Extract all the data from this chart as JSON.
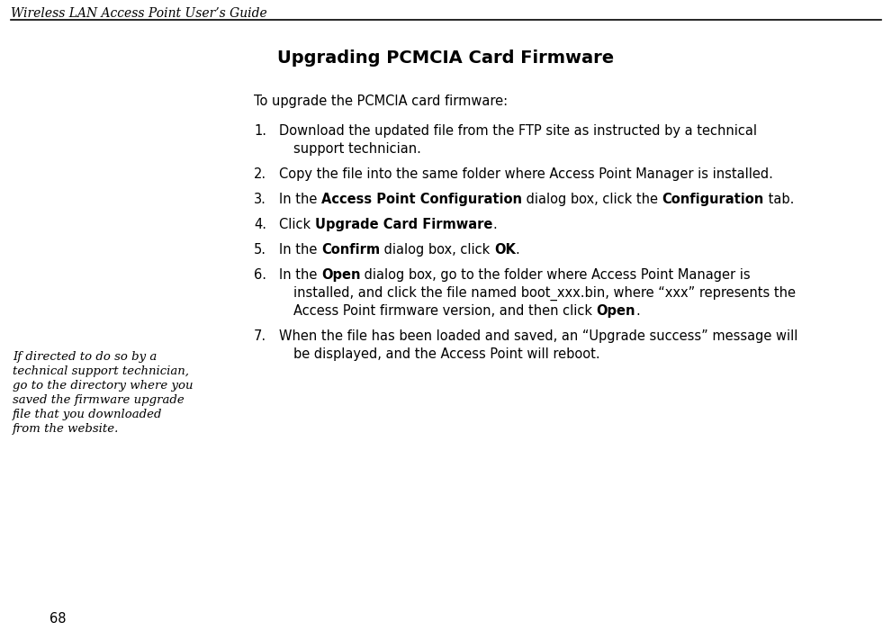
{
  "bg_color": "#ffffff",
  "header_text": "Wireless LAN Access Point User’s Guide",
  "title_text": "Upgrading PCMCIA Card Firmware",
  "page_number": "68",
  "intro_text": "To upgrade the PCMCIA card firmware:",
  "sidebar_lines": [
    "If directed to do so by a",
    "technical support technician,",
    "go to the directory where you",
    "saved the firmware upgrade",
    "file that you downloaded",
    "from the website."
  ],
  "body_items": [
    {
      "number": "1.",
      "lines": [
        [
          {
            "text": "Download the updated file from the FTP site as instructed by a technical",
            "bold": false
          }
        ],
        [
          {
            "text": "support technician.",
            "bold": false
          }
        ]
      ]
    },
    {
      "number": "2.",
      "lines": [
        [
          {
            "text": "Copy the file into the same folder where Access Point Manager is installed.",
            "bold": false
          }
        ]
      ]
    },
    {
      "number": "3.",
      "lines": [
        [
          {
            "text": "In the ",
            "bold": false
          },
          {
            "text": "Access Point Configuration",
            "bold": true
          },
          {
            "text": " dialog box, click the ",
            "bold": false
          },
          {
            "text": "Configuration",
            "bold": true
          },
          {
            "text": " tab.",
            "bold": false
          }
        ]
      ]
    },
    {
      "number": "4.",
      "lines": [
        [
          {
            "text": "Click ",
            "bold": false
          },
          {
            "text": "Upgrade Card Firmware",
            "bold": true
          },
          {
            "text": ".",
            "bold": false
          }
        ]
      ]
    },
    {
      "number": "5.",
      "lines": [
        [
          {
            "text": "In the ",
            "bold": false
          },
          {
            "text": "Confirm",
            "bold": true
          },
          {
            "text": " dialog box, click ",
            "bold": false
          },
          {
            "text": "OK",
            "bold": true
          },
          {
            "text": ".",
            "bold": false
          }
        ]
      ]
    },
    {
      "number": "6.",
      "lines": [
        [
          {
            "text": "In the ",
            "bold": false
          },
          {
            "text": "Open",
            "bold": true
          },
          {
            "text": " dialog box, go to the folder where Access Point Manager is",
            "bold": false
          }
        ],
        [
          {
            "text": "installed, and click the file named boot_xxx.bin, where “xxx” represents the",
            "bold": false
          }
        ],
        [
          {
            "text": "Access Point firmware version, and then click ",
            "bold": false
          },
          {
            "text": "Open",
            "bold": true
          },
          {
            "text": ".",
            "bold": false
          }
        ]
      ]
    },
    {
      "number": "7.",
      "lines": [
        [
          {
            "text": "When the file has been loaded and saved, an “Upgrade success” message will",
            "bold": false
          }
        ],
        [
          {
            "text": "be displayed, and the Access Point will reboot.",
            "bold": false
          }
        ]
      ]
    }
  ]
}
